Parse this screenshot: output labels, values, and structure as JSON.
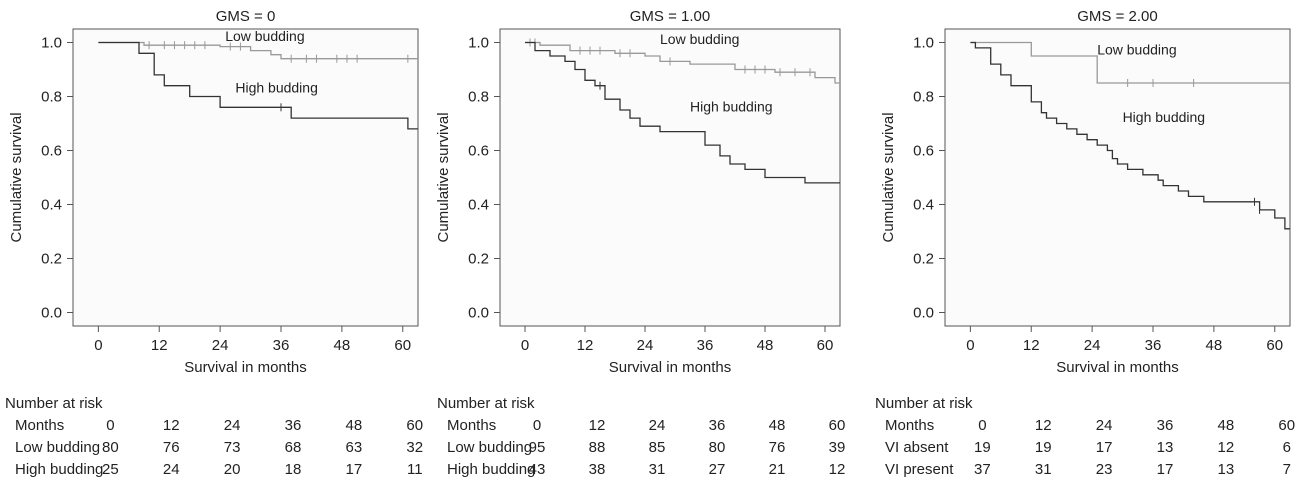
{
  "chart_data": [
    {
      "type": "line",
      "title": "GMS = 0",
      "xlabel": "Survival in months",
      "ylabel": "Cumulative survival",
      "xlim": [
        -5,
        63
      ],
      "ylim": [
        -0.05,
        1.05
      ],
      "xticks": [
        "0",
        "12",
        "24",
        "36",
        "48",
        "60"
      ],
      "yticks": [
        "0.0",
        "0.2",
        "0.4",
        "0.6",
        "0.8",
        "1.0"
      ],
      "series": [
        {
          "name": "Low budding",
          "label_at": [
            25,
            1.005
          ],
          "color": "#999999",
          "steps": [
            [
              0,
              1.0
            ],
            [
              9,
              0.99
            ],
            [
              24,
              0.985
            ],
            [
              30,
              0.97
            ],
            [
              34,
              0.955
            ],
            [
              36,
              0.94
            ],
            [
              63,
              0.94
            ]
          ],
          "censor": [
            10,
            13,
            15,
            17,
            19,
            21,
            26,
            28,
            38,
            41,
            43,
            47,
            49,
            51,
            61
          ]
        },
        {
          "name": "High budding",
          "label_at": [
            27,
            0.815
          ],
          "color": "#333333",
          "steps": [
            [
              0,
              1.0
            ],
            [
              8,
              0.96
            ],
            [
              11,
              0.88
            ],
            [
              13,
              0.84
            ],
            [
              18,
              0.8
            ],
            [
              24,
              0.76
            ],
            [
              38,
              0.72
            ],
            [
              61,
              0.68
            ],
            [
              63,
              0.68
            ]
          ],
          "censor": [
            36
          ]
        }
      ],
      "risk_table": {
        "title": "Number at risk",
        "rows": [
          {
            "label": "Months",
            "values": [
              "0",
              "12",
              "24",
              "36",
              "48",
              "60"
            ]
          },
          {
            "label": "Low budding",
            "values": [
              "80",
              "76",
              "73",
              "68",
              "63",
              "32"
            ]
          },
          {
            "label": "High budding",
            "values": [
              "25",
              "24",
              "20",
              "18",
              "17",
              "11"
            ]
          }
        ]
      }
    },
    {
      "type": "line",
      "title": "GMS = 1.00",
      "xlabel": "Survival in months",
      "ylabel": "Cumulative survival",
      "xlim": [
        -5,
        63
      ],
      "ylim": [
        -0.05,
        1.05
      ],
      "xticks": [
        "0",
        "12",
        "24",
        "36",
        "48",
        "60"
      ],
      "yticks": [
        "0.0",
        "0.2",
        "0.4",
        "0.6",
        "0.8",
        "1.0"
      ],
      "series": [
        {
          "name": "Low budding",
          "label_at": [
            27,
            0.995
          ],
          "color": "#999999",
          "steps": [
            [
              0,
              1.0
            ],
            [
              3,
              0.99
            ],
            [
              9,
              0.97
            ],
            [
              18,
              0.96
            ],
            [
              24,
              0.95
            ],
            [
              27,
              0.93
            ],
            [
              33,
              0.92
            ],
            [
              42,
              0.9
            ],
            [
              50,
              0.89
            ],
            [
              58,
              0.87
            ],
            [
              62,
              0.85
            ],
            [
              63,
              0.85
            ]
          ],
          "censor": [
            1,
            2,
            11,
            13,
            15,
            19,
            21,
            29,
            44,
            46,
            48,
            51,
            54,
            57
          ]
        },
        {
          "name": "High budding",
          "label_at": [
            33,
            0.745
          ],
          "color": "#333333",
          "steps": [
            [
              0,
              1.0
            ],
            [
              2,
              0.97
            ],
            [
              5,
              0.95
            ],
            [
              8,
              0.93
            ],
            [
              10,
              0.9
            ],
            [
              12,
              0.86
            ],
            [
              14,
              0.84
            ],
            [
              16,
              0.79
            ],
            [
              19,
              0.75
            ],
            [
              21,
              0.72
            ],
            [
              23,
              0.69
            ],
            [
              27,
              0.67
            ],
            [
              36,
              0.62
            ],
            [
              39,
              0.58
            ],
            [
              41,
              0.55
            ],
            [
              44,
              0.53
            ],
            [
              48,
              0.5
            ],
            [
              56,
              0.48
            ],
            [
              63,
              0.48
            ]
          ],
          "censor": [
            15
          ]
        }
      ],
      "risk_table": {
        "title": "Number at risk",
        "rows": [
          {
            "label": "Months",
            "values": [
              "0",
              "12",
              "24",
              "36",
              "48",
              "60"
            ]
          },
          {
            "label": "Low budding",
            "values": [
              "95",
              "88",
              "85",
              "80",
              "76",
              "39"
            ]
          },
          {
            "label": "High budding",
            "values": [
              "43",
              "38",
              "31",
              "27",
              "21",
              "12"
            ]
          }
        ]
      }
    },
    {
      "type": "line",
      "title": "GMS = 2.00",
      "xlabel": "Survival in months",
      "ylabel": "Cumulative survival",
      "xlim": [
        -5,
        63
      ],
      "ylim": [
        -0.05,
        1.05
      ],
      "xticks": [
        "0",
        "12",
        "24",
        "36",
        "48",
        "60"
      ],
      "yticks": [
        "0.0",
        "0.2",
        "0.4",
        "0.6",
        "0.8",
        "1.0"
      ],
      "series": [
        {
          "name": "Low budding",
          "label_at": [
            25,
            0.955
          ],
          "color": "#999999",
          "steps": [
            [
              0,
              1.0
            ],
            [
              12,
              0.95
            ],
            [
              25,
              0.85
            ],
            [
              63,
              0.85
            ]
          ],
          "censor": [
            31,
            36,
            44
          ]
        },
        {
          "name": "High budding",
          "label_at": [
            30,
            0.705
          ],
          "color": "#333333",
          "steps": [
            [
              0,
              1.0
            ],
            [
              1,
              0.98
            ],
            [
              4,
              0.92
            ],
            [
              6,
              0.88
            ],
            [
              8,
              0.84
            ],
            [
              12,
              0.78
            ],
            [
              14,
              0.74
            ],
            [
              15,
              0.72
            ],
            [
              17,
              0.7
            ],
            [
              19,
              0.68
            ],
            [
              21,
              0.66
            ],
            [
              23,
              0.64
            ],
            [
              25,
              0.62
            ],
            [
              27,
              0.6
            ],
            [
              28,
              0.57
            ],
            [
              29,
              0.55
            ],
            [
              31,
              0.53
            ],
            [
              34,
              0.51
            ],
            [
              37,
              0.49
            ],
            [
              38,
              0.47
            ],
            [
              41,
              0.45
            ],
            [
              43,
              0.43
            ],
            [
              46,
              0.41
            ],
            [
              57,
              0.38
            ],
            [
              60,
              0.35
            ],
            [
              62,
              0.31
            ],
            [
              63,
              0.31
            ]
          ],
          "censor": [
            56,
            57
          ]
        }
      ],
      "risk_table": {
        "title": "Number at risk",
        "rows": [
          {
            "label": "Months",
            "values": [
              "0",
              "12",
              "24",
              "36",
              "48",
              "60"
            ]
          },
          {
            "label": "VI absent",
            "values": [
              "19",
              "19",
              "17",
              "13",
              "12",
              "6"
            ]
          },
          {
            "label": "VI present",
            "values": [
              "37",
              "31",
              "23",
              "17",
              "13",
              "7"
            ]
          }
        ]
      }
    }
  ]
}
